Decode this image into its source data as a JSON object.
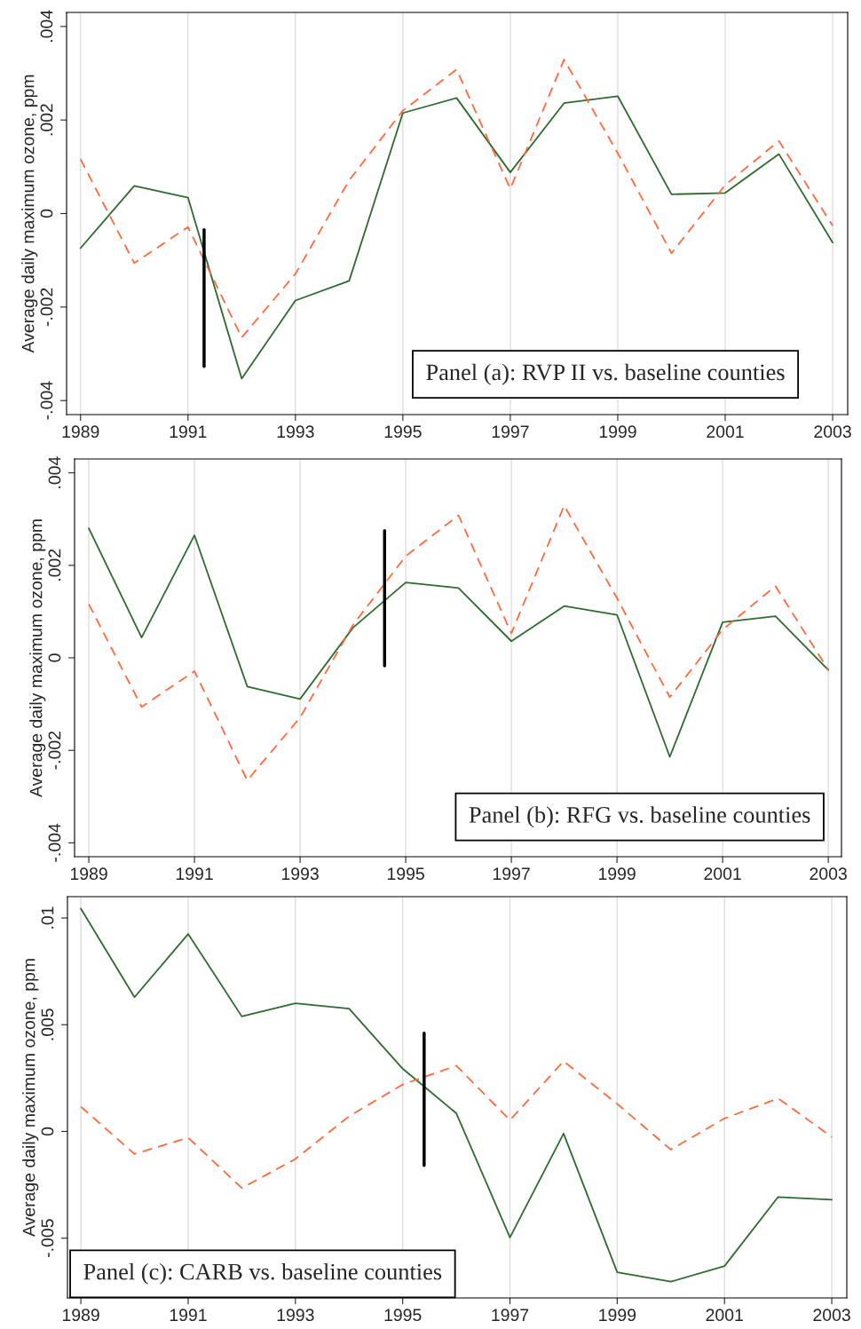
{
  "chart_data": [
    {
      "type": "line",
      "ylabel": "Average daily maximum ozone, ppm",
      "annotations": [
        "Panel (a): RVP II vs. baseline counties"
      ],
      "x": [
        1989,
        1990,
        1991,
        1992,
        1993,
        1994,
        1995,
        1996,
        1997,
        1998,
        1999,
        2000,
        2001,
        2002,
        2003
      ],
      "series": [
        {
          "color": "#2e6b2e",
          "line_style": "solid",
          "values": [
            -0.00074,
            0.00059,
            0.00034,
            -0.00353,
            -0.00186,
            -0.00144,
            0.00215,
            0.00247,
            0.00088,
            0.00236,
            0.00251,
            0.00041,
            0.00044,
            0.00127,
            -0.00062
          ]
        },
        {
          "color": "#ff6a3d",
          "line_style": "dashed",
          "values": [
            0.00116,
            -0.00106,
            -0.00029,
            -0.00265,
            -0.00129,
            0.00071,
            0.0022,
            0.00308,
            0.00053,
            0.00329,
            0.00129,
            -0.00085,
            0.00061,
            0.00155,
            -0.00026
          ]
        }
      ],
      "xlim": [
        1988.74,
        2003.28
      ],
      "xticks": [
        1989,
        1991,
        1993,
        1995,
        1997,
        1999,
        2001,
        2003
      ],
      "ylim": [
        -0.0043,
        0.0043
      ],
      "yticks": [
        {
          "value": -0.004,
          "label": "-.004"
        },
        {
          "value": -0.002,
          "label": "-.002"
        },
        0,
        {
          "value": 0.002,
          "label": ".002"
        },
        {
          "value": 0.004,
          "label": ".004"
        }
      ],
      "grid": "x",
      "ref_lines": [
        {
          "axis": "x",
          "value": 1991.3,
          "color": "#000000"
        }
      ]
    },
    {
      "type": "line",
      "ylabel": "Average daily maximum ozone, ppm",
      "annotations": [
        "Panel (b): RFG vs. baseline counties"
      ],
      "x": [
        1989,
        1990,
        1991,
        1992,
        1993,
        1994,
        1995,
        1996,
        1997,
        1998,
        1999,
        2000,
        2001,
        2002,
        2003
      ],
      "series": [
        {
          "color": "#2e6b2e",
          "line_style": "solid",
          "values": [
            0.0028,
            0.00044,
            0.00265,
            -0.00062,
            -0.00089,
            0.00065,
            0.00163,
            0.00151,
            0.00036,
            0.00112,
            0.00093,
            -0.00214,
            0.00077,
            0.0009,
            -0.00026
          ]
        },
        {
          "color": "#ff6a3d",
          "line_style": "dashed",
          "values": [
            0.00116,
            -0.00106,
            -0.00029,
            -0.00265,
            -0.00129,
            0.00071,
            0.0022,
            0.00308,
            0.00053,
            0.00329,
            0.00129,
            -0.00085,
            0.00061,
            0.00155,
            -0.00026
          ]
        }
      ],
      "xlim": [
        1988.73,
        2003.25
      ],
      "xticks": [
        1989,
        1991,
        1993,
        1995,
        1997,
        1999,
        2001,
        2003
      ],
      "ylim": [
        -0.0043,
        0.0043
      ],
      "yticks": [
        {
          "value": -0.004,
          "label": "-.004"
        },
        {
          "value": -0.002,
          "label": "-.002"
        },
        0,
        {
          "value": 0.002,
          "label": ".002"
        },
        {
          "value": 0.004,
          "label": ".004"
        }
      ],
      "grid": "x",
      "ref_lines": [
        {
          "axis": "x",
          "value": 1994.6,
          "color": "#000000"
        }
      ]
    },
    {
      "type": "line",
      "ylabel": "Average daily maximum ozone, ppm",
      "annotations": [
        "Panel (c): CARB vs. baseline counties"
      ],
      "x": [
        1989,
        1990,
        1991,
        1992,
        1993,
        1994,
        1995,
        1996,
        1997,
        1998,
        1999,
        2000,
        2001,
        2002,
        2003
      ],
      "series": [
        {
          "color": "#2e6b2e",
          "line_style": "solid",
          "values": [
            0.01044,
            0.00629,
            0.00925,
            0.00539,
            0.006,
            0.00575,
            0.00294,
            0.00085,
            -0.00497,
            -0.0001,
            -0.0066,
            -0.00704,
            -0.00631,
            -0.00307,
            -0.0032
          ]
        },
        {
          "color": "#ff6a3d",
          "line_style": "dashed",
          "values": [
            0.00116,
            -0.00106,
            -0.00029,
            -0.00265,
            -0.00129,
            0.00071,
            0.0022,
            0.00308,
            0.00053,
            0.00329,
            0.00129,
            -0.00085,
            0.00061,
            0.00155,
            -0.00026
          ]
        }
      ],
      "xlim": [
        1988.75,
        2003.28
      ],
      "xticks": [
        1989,
        1991,
        1993,
        1995,
        1997,
        1999,
        2001,
        2003
      ],
      "ylim": [
        -0.0078,
        0.011
      ],
      "yticks": [
        {
          "value": -0.005,
          "label": "-.005"
        },
        0,
        {
          "value": 0.005,
          "label": ".005"
        },
        {
          "value": 0.01,
          "label": ".01"
        }
      ],
      "grid": "x",
      "ref_lines": [
        {
          "axis": "x",
          "value": 1995.4,
          "color": "#000000"
        }
      ]
    }
  ]
}
